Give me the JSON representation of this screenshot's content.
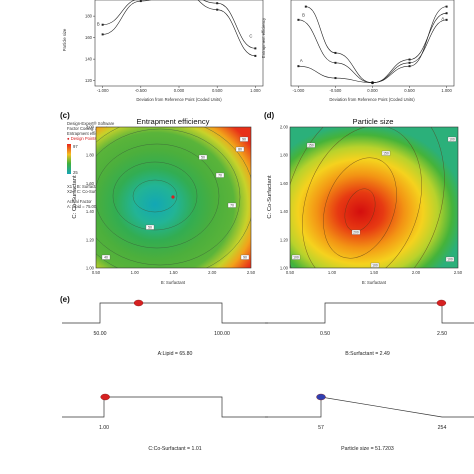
{
  "panels": {
    "c": "(c)",
    "d": "(d)",
    "e": "(e)"
  },
  "top_plots": {
    "left": {
      "ylabel": "Particle size",
      "xlabel": "Deviation from Reference Point (Coded Units)",
      "x_ticks": [
        "-1.000",
        "-0.500",
        "0.000",
        "0.500",
        "1.000"
      ],
      "y_ticks": [
        "120",
        "140",
        "160",
        "180"
      ],
      "curve_letters": [
        "B",
        "C"
      ],
      "curves": [
        {
          "x": [
            -1.0,
            -0.5,
            0.0,
            0.5,
            1.0
          ],
          "y": [
            172,
            196,
            204,
            192,
            150
          ]
        },
        {
          "x": [
            -1.0,
            -0.5,
            0.0,
            0.5,
            1.0
          ],
          "y": [
            163,
            194,
            204,
            186,
            143
          ]
        }
      ],
      "ylim": [
        115,
        195
      ],
      "xlim": [
        -1.1,
        1.1
      ]
    },
    "right": {
      "ylabel": "Entrapment efficiency",
      "xlabel": "Deviation from Reference Point (Coded Units)",
      "x_ticks": [
        "-1.000",
        "-0.500",
        "0.000",
        "0.500",
        "1.000"
      ],
      "curve_letters": [
        "B",
        "A",
        "A"
      ],
      "curves": [
        {
          "x": [
            -1.0,
            -0.5,
            0.0,
            0.5,
            1.0
          ],
          "y": [
            1.0,
            0.35,
            0.05,
            0.4,
            1.1
          ]
        },
        {
          "x": [
            -1.0,
            -0.5,
            0.0,
            0.5,
            1.0
          ],
          "y": [
            0.3,
            0.12,
            0.05,
            0.35,
            1.0
          ]
        },
        {
          "x": [
            -0.9,
            -0.5,
            0.0,
            0.5,
            1.0
          ],
          "y": [
            1.2,
            0.5,
            0.05,
            0.3,
            1.2
          ]
        }
      ],
      "ylim": [
        0,
        1.3
      ],
      "xlim": [
        -1.1,
        1.1
      ]
    }
  },
  "legend": {
    "lines": [
      "Design-Expert® Software",
      "Factor Coding: Actual",
      "Entrapment efficiency"
    ],
    "design_points": "● Design Points",
    "max": "97",
    "min": "25",
    "x1": "X1 = B: Surfactant",
    "x2": "X2 = C: Co-Surfactant",
    "actual_factor": "Actual Factor",
    "lipid": "A: Lipid = 75.00"
  },
  "contour_c": {
    "title": "Entrapment efficiency",
    "xlabel": "B: Surfactant",
    "ylabel": "C: Co-Surfactant",
    "x_ticks": [
      "0.50",
      "1.00",
      "1.50",
      "2.00",
      "2.50"
    ],
    "y_ticks": [
      "1.00",
      "1.20",
      "1.40",
      "1.60",
      "1.80",
      "2.00"
    ],
    "contour_labels": [
      "40",
      "50",
      "70",
      "50",
      "70",
      "80",
      "90",
      "90"
    ]
  },
  "contour_d": {
    "title": "Particle size",
    "xlabel": "B: Surfactant",
    "ylabel": "C: Co-Surfactant",
    "x_ticks": [
      "0.50",
      "1.00",
      "1.50",
      "2.00",
      "2.50"
    ],
    "y_ticks": [
      "1.00",
      "1.20",
      "1.40",
      "1.60",
      "1.80",
      "2.00"
    ],
    "contour_labels": [
      "150",
      "200",
      "100",
      "150",
      "100",
      "100",
      "100"
    ]
  },
  "chart_data": [
    {
      "type": "line",
      "title": "",
      "xlabel": "Deviation from Reference Point (Coded Units)",
      "ylabel": "Particle size",
      "series": [
        {
          "name": "B",
          "x": [
            -1.0,
            -0.5,
            0.0,
            0.5,
            1.0
          ],
          "values": [
            172,
            196,
            204,
            192,
            150
          ]
        },
        {
          "name": "C",
          "x": [
            -1.0,
            -0.5,
            0.0,
            0.5,
            1.0
          ],
          "values": [
            163,
            194,
            204,
            186,
            143
          ]
        }
      ]
    },
    {
      "type": "line",
      "title": "",
      "xlabel": "Deviation from Reference Point (Coded Units)",
      "ylabel": "Entrapment efficiency",
      "series": [
        {
          "name": "B",
          "x": [
            -1.0,
            -0.5,
            0.0,
            0.5,
            1.0
          ],
          "values": [
            1.0,
            0.35,
            0.05,
            0.4,
            1.1
          ]
        },
        {
          "name": "A",
          "x": [
            -1.0,
            -0.5,
            0.0,
            0.5,
            1.0
          ],
          "values": [
            0.3,
            0.12,
            0.05,
            0.35,
            1.0
          ]
        }
      ]
    },
    {
      "type": "heatmap",
      "title": "Entrapment efficiency",
      "xlabel": "B: Surfactant",
      "ylabel": "C: Co-Surfactant",
      "xlim": [
        0.5,
        2.5
      ],
      "ylim": [
        1.0,
        2.0
      ],
      "colorbar": {
        "min": 25,
        "max": 97
      }
    },
    {
      "type": "heatmap",
      "title": "Particle size",
      "xlabel": "B: Surfactant",
      "ylabel": "C: Co-Surfactant",
      "xlim": [
        0.5,
        2.5
      ],
      "ylim": [
        1.0,
        2.0
      ]
    }
  ],
  "ramps": [
    {
      "label": "A:Lipid = 65.80",
      "low": "50.00",
      "high": "100.00",
      "value": 65.8,
      "min": 50,
      "max": 100,
      "kind": "range",
      "marker": "#d62020"
    },
    {
      "label": "B:Surfactant = 2.49",
      "low": "0.50",
      "high": "2.50",
      "value": 2.49,
      "min": 0.5,
      "max": 2.5,
      "kind": "range",
      "marker": "#d62020"
    },
    {
      "label": "C:Co-Surfactant = 1.01",
      "low": "1.00",
      "high": "",
      "value": 1.01,
      "min": 1.0,
      "max": 2.0,
      "kind": "range",
      "marker": "#d62020"
    },
    {
      "label": "Particle size = 51.7203",
      "low": "57",
      "high": "254",
      "value": 51.72,
      "min": 57,
      "max": 254,
      "kind": "minimize",
      "marker": "#2f3fb0"
    }
  ]
}
